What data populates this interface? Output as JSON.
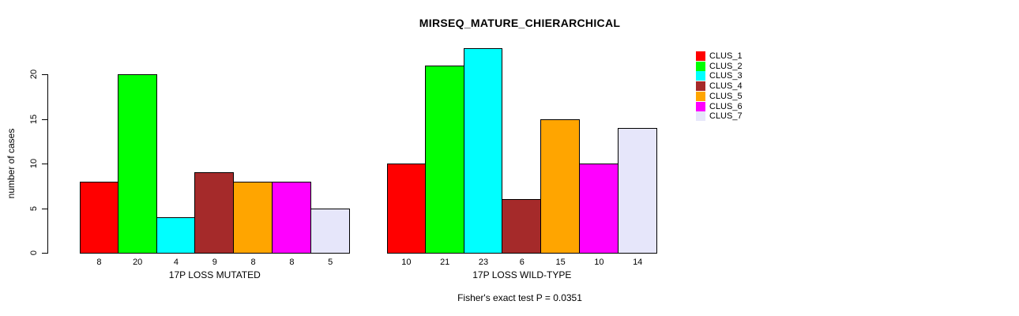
{
  "title": "MIRSEQ_MATURE_CHIERARCHICAL",
  "y_axis_label": "number of cases",
  "annotation": "Fisher's exact test P = 0.0351",
  "legend": {
    "position": "right",
    "items": [
      {
        "label": "CLUS_1",
        "color": "#FF0000"
      },
      {
        "label": "CLUS_2",
        "color": "#00FF00"
      },
      {
        "label": "CLUS_3",
        "color": "#00FFFF"
      },
      {
        "label": "CLUS_4",
        "color": "#A52A2A"
      },
      {
        "label": "CLUS_5",
        "color": "#FFA500"
      },
      {
        "label": "CLUS_6",
        "color": "#FF00FF"
      },
      {
        "label": "CLUS_7",
        "color": "#E6E6FA"
      }
    ]
  },
  "chart_data": {
    "type": "bar",
    "title": "MIRSEQ_MATURE_CHIERARCHICAL",
    "xlabel": "",
    "ylabel": "number of cases",
    "categories": [
      "17P LOSS MUTATED",
      "17P LOSS WILD-TYPE"
    ],
    "series": [
      {
        "name": "CLUS_1",
        "color": "#FF0000",
        "values": [
          8,
          10
        ]
      },
      {
        "name": "CLUS_2",
        "color": "#00FF00",
        "values": [
          20,
          21
        ]
      },
      {
        "name": "CLUS_3",
        "color": "#00FFFF",
        "values": [
          4,
          23
        ]
      },
      {
        "name": "CLUS_4",
        "color": "#A52A2A",
        "values": [
          9,
          6
        ]
      },
      {
        "name": "CLUS_5",
        "color": "#FFA500",
        "values": [
          8,
          15
        ]
      },
      {
        "name": "CLUS_6",
        "color": "#FF00FF",
        "values": [
          8,
          10
        ]
      },
      {
        "name": "CLUS_7",
        "color": "#E6E6FA",
        "values": [
          5,
          14
        ]
      }
    ],
    "yticks": [
      0,
      5,
      10,
      15,
      20
    ],
    "ylim": [
      0,
      23
    ],
    "grid": false,
    "bar_border_color": "#000000",
    "value_labels_shown": true,
    "legend_position": "right",
    "annotation": "Fisher's exact test P = 0.0351"
  }
}
